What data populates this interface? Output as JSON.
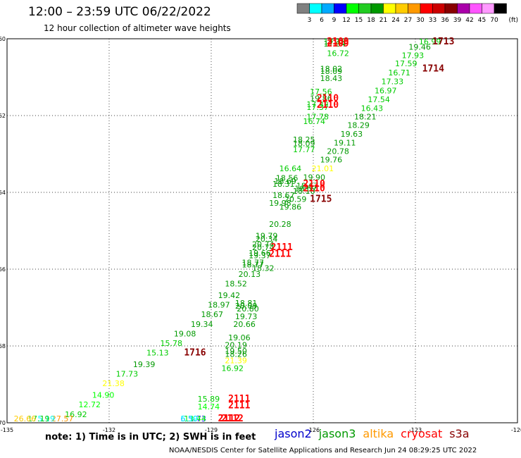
{
  "title": "12:00 – 23:59 UTC 06/22/2022",
  "subtitle": "12 hour collection of altimeter wave heights",
  "legend": {
    "unit": "(ft)",
    "ticks": [
      "3",
      "6",
      "9",
      "12",
      "15",
      "18",
      "21",
      "24",
      "27",
      "30",
      "33",
      "36",
      "39",
      "42",
      "45",
      "70"
    ],
    "colors": [
      "#808080",
      "#00ffff",
      "#00aaff",
      "#0000ff",
      "#00ff00",
      "#22cc22",
      "#009900",
      "#ffff00",
      "#ffcc00",
      "#ff9900",
      "#ff0000",
      "#cc0000",
      "#880000",
      "#aa00aa",
      "#ff55ff",
      "#ff99ff",
      "#000000"
    ]
  },
  "chart_data": {
    "type": "scatter",
    "x_ticks": [
      "-135",
      "-132",
      "-129",
      "-126",
      "-123",
      "-120"
    ],
    "y_ticks": [
      "-60",
      "-62",
      "-64",
      "-66",
      "-68",
      "-70"
    ],
    "xlim": [
      -135,
      -120
    ],
    "ylim": [
      -70,
      -60
    ],
    "grid": true,
    "points": [
      {
        "lon": -125.7,
        "lat": -60.1,
        "label": "17.16",
        "color": "#00cc00"
      },
      {
        "lon": -125.7,
        "lat": -60.2,
        "label": "17.04",
        "color": "#009900"
      },
      {
        "lon": -125.6,
        "lat": -60.45,
        "label": "16.72",
        "color": "#00cc00"
      },
      {
        "lon": -125.8,
        "lat": -60.85,
        "label": "18.02",
        "color": "#009900"
      },
      {
        "lon": -125.8,
        "lat": -60.92,
        "label": "18.09",
        "color": "#009900"
      },
      {
        "lon": -125.8,
        "lat": -61.1,
        "label": "18.43",
        "color": "#009900"
      },
      {
        "lon": -126.1,
        "lat": -61.45,
        "label": "17.56",
        "color": "#00cc00"
      },
      {
        "lon": -126.1,
        "lat": -61.62,
        "label": "19.86",
        "color": "#009900"
      },
      {
        "lon": -126.2,
        "lat": -61.78,
        "label": "17.42",
        "color": "#00cc00"
      },
      {
        "lon": -126.2,
        "lat": -61.85,
        "label": "17.37",
        "color": "#00cc00"
      },
      {
        "lon": -126.2,
        "lat": -62.1,
        "label": "17.78",
        "color": "#00cc00"
      },
      {
        "lon": -126.3,
        "lat": -62.22,
        "label": "16.74",
        "color": "#00cc00"
      },
      {
        "lon": -126.6,
        "lat": -62.7,
        "label": "18.25",
        "color": "#009900"
      },
      {
        "lon": -126.6,
        "lat": -62.8,
        "label": "18.09",
        "color": "#009900"
      },
      {
        "lon": -126.6,
        "lat": -62.95,
        "label": "17.77",
        "color": "#00cc00"
      },
      {
        "lon": -127.0,
        "lat": -63.45,
        "label": "16.64",
        "color": "#00cc00"
      },
      {
        "lon": -127.1,
        "lat": -63.7,
        "label": "18.56",
        "color": "#009900"
      },
      {
        "lon": -127.15,
        "lat": -63.78,
        "label": "18.69",
        "color": "#009900"
      },
      {
        "lon": -127.2,
        "lat": -63.85,
        "label": "18.31",
        "color": "#009900"
      },
      {
        "lon": -127.2,
        "lat": -64.15,
        "label": "18.67",
        "color": "#009900"
      },
      {
        "lon": -127.3,
        "lat": -64.35,
        "label": "19.98",
        "color": "#009900"
      },
      {
        "lon": -127.3,
        "lat": -64.9,
        "label": "20.28",
        "color": "#009900"
      },
      {
        "lon": -127.7,
        "lat": -65.2,
        "label": "19.79",
        "color": "#009900"
      },
      {
        "lon": -127.7,
        "lat": -65.28,
        "label": "20.34",
        "color": "#009900"
      },
      {
        "lon": -127.8,
        "lat": -65.42,
        "label": "20.74",
        "color": "#009900"
      },
      {
        "lon": -127.8,
        "lat": -65.5,
        "label": "20.74",
        "color": "#009900"
      },
      {
        "lon": -127.9,
        "lat": -65.65,
        "label": "19.66",
        "color": "#009900"
      },
      {
        "lon": -127.9,
        "lat": -65.72,
        "label": "19.37",
        "color": "#009900"
      },
      {
        "lon": -128.1,
        "lat": -65.9,
        "label": "18.77",
        "color": "#009900"
      },
      {
        "lon": -128.1,
        "lat": -65.95,
        "label": "18.77",
        "color": "#009900"
      },
      {
        "lon": -127.8,
        "lat": -66.05,
        "label": "18.32",
        "color": "#009900"
      },
      {
        "lon": -128.2,
        "lat": -66.2,
        "label": "20.13",
        "color": "#009900"
      },
      {
        "lon": -128.6,
        "lat": -66.45,
        "label": "18.52",
        "color": "#009900"
      },
      {
        "lon": -128.8,
        "lat": -66.75,
        "label": "19.42",
        "color": "#009900"
      },
      {
        "lon": -129.1,
        "lat": -67.0,
        "label": "18.97",
        "color": "#009900"
      },
      {
        "lon": -129.3,
        "lat": -67.25,
        "label": "18.67",
        "color": "#009900"
      },
      {
        "lon": -129.6,
        "lat": -67.5,
        "label": "19.34",
        "color": "#009900"
      },
      {
        "lon": -130.1,
        "lat": -67.75,
        "label": "19.08",
        "color": "#009900"
      },
      {
        "lon": -130.5,
        "lat": -68.0,
        "label": "15.78",
        "color": "#00cc00"
      },
      {
        "lon": -130.9,
        "lat": -68.25,
        "label": "15.13",
        "color": "#00cc00"
      },
      {
        "lon": -131.3,
        "lat": -68.55,
        "label": "19.39",
        "color": "#009900"
      },
      {
        "lon": -131.8,
        "lat": -68.8,
        "label": "17.73",
        "color": "#00cc00"
      },
      {
        "lon": -132.2,
        "lat": -69.05,
        "label": "21.38",
        "color": "#ffff00"
      },
      {
        "lon": -132.5,
        "lat": -69.35,
        "label": "14.90",
        "color": "#00ff00"
      },
      {
        "lon": -132.9,
        "lat": -69.6,
        "label": "12.72",
        "color": "#00ff00"
      },
      {
        "lon": -133.3,
        "lat": -69.85,
        "label": "16.92",
        "color": "#00cc00"
      },
      {
        "lon": -133.7,
        "lat": -70.15,
        "label": "27.57",
        "color": "#ff9900"
      },
      {
        "lon": -134.1,
        "lat": -70.45,
        "label": "5.19",
        "color": "#00ffff"
      },
      {
        "lon": -134.4,
        "lat": -70.7,
        "label": "17.19",
        "color": "#00cc00"
      },
      {
        "lon": -134.8,
        "lat": -71.0,
        "label": "26.66",
        "color": "#ffcc00"
      },
      {
        "lon": -122.9,
        "lat": -60.05,
        "label": "16.99",
        "color": "#00cc00"
      },
      {
        "lon": -123.2,
        "lat": -60.28,
        "label": "19.46",
        "color": "#009900"
      },
      {
        "lon": -123.4,
        "lat": -60.5,
        "label": "17.93",
        "color": "#00cc00"
      },
      {
        "lon": -123.6,
        "lat": -60.72,
        "label": "17.59",
        "color": "#00cc00"
      },
      {
        "lon": -123.8,
        "lat": -60.95,
        "label": "16.71",
        "color": "#00cc00"
      },
      {
        "lon": -124.0,
        "lat": -61.18,
        "label": "17.33",
        "color": "#00cc00"
      },
      {
        "lon": -124.2,
        "lat": -61.42,
        "label": "16.97",
        "color": "#00cc00"
      },
      {
        "lon": -124.4,
        "lat": -61.65,
        "label": "17.54",
        "color": "#00cc00"
      },
      {
        "lon": -124.6,
        "lat": -61.88,
        "label": "16.43",
        "color": "#00cc00"
      },
      {
        "lon": -124.8,
        "lat": -62.1,
        "label": "18.21",
        "color": "#009900"
      },
      {
        "lon": -125.0,
        "lat": -62.32,
        "label": "18.29",
        "color": "#009900"
      },
      {
        "lon": -125.2,
        "lat": -62.55,
        "label": "19.63",
        "color": "#009900"
      },
      {
        "lon": -125.4,
        "lat": -62.78,
        "label": "19.11",
        "color": "#009900"
      },
      {
        "lon": -125.6,
        "lat": -63.0,
        "label": "20.78",
        "color": "#009900"
      },
      {
        "lon": -125.8,
        "lat": -63.22,
        "label": "19.76",
        "color": "#009900"
      },
      {
        "lon": -126.05,
        "lat": -63.45,
        "label": "21.01",
        "color": "#ffff00"
      },
      {
        "lon": -126.3,
        "lat": -63.68,
        "label": "19.90",
        "color": "#009900"
      },
      {
        "lon": -126.5,
        "lat": -63.9,
        "label": "18.67",
        "color": "#009900"
      },
      {
        "lon": -126.55,
        "lat": -63.97,
        "label": "18.57",
        "color": "#009900"
      },
      {
        "lon": -126.6,
        "lat": -64.04,
        "label": "18.10",
        "color": "#009900"
      },
      {
        "lon": -126.85,
        "lat": -64.25,
        "label": "20.59",
        "color": "#009900"
      },
      {
        "lon": -127.0,
        "lat": -64.45,
        "label": "19.86",
        "color": "#009900"
      },
      {
        "lon": -128.3,
        "lat": -66.95,
        "label": "18.81",
        "color": "#009900"
      },
      {
        "lon": -128.3,
        "lat": -67.03,
        "label": "20.09",
        "color": "#009900"
      },
      {
        "lon": -128.25,
        "lat": -67.1,
        "label": "20.80",
        "color": "#009900"
      },
      {
        "lon": -128.3,
        "lat": -67.3,
        "label": "19.73",
        "color": "#009900"
      },
      {
        "lon": -128.35,
        "lat": -67.5,
        "label": "20.66",
        "color": "#009900"
      },
      {
        "lon": -128.5,
        "lat": -67.85,
        "label": "19.06",
        "color": "#009900"
      },
      {
        "lon": -128.6,
        "lat": -68.05,
        "label": "20.19",
        "color": "#009900"
      },
      {
        "lon": -128.6,
        "lat": -68.2,
        "label": "19.50",
        "color": "#009900"
      },
      {
        "lon": -128.6,
        "lat": -68.28,
        "label": "18.26",
        "color": "#009900"
      },
      {
        "lon": -128.6,
        "lat": -68.45,
        "label": "21.39",
        "color": "#ffff00"
      },
      {
        "lon": -128.7,
        "lat": -68.65,
        "label": "16.92",
        "color": "#00cc00"
      },
      {
        "lon": -129.4,
        "lat": -69.45,
        "label": "15.89",
        "color": "#00cc00"
      },
      {
        "lon": -129.4,
        "lat": -69.65,
        "label": "14.74",
        "color": "#00ff00"
      },
      {
        "lon": -129.8,
        "lat": -70.3,
        "label": "11.73",
        "color": "#0000ff"
      },
      {
        "lon": -129.8,
        "lat": -70.5,
        "label": "13.44",
        "color": "#00ff00"
      },
      {
        "lon": -129.9,
        "lat": -71.0,
        "label": "6.50",
        "color": "#00aaff"
      },
      {
        "lon": -129.9,
        "lat": -71.2,
        "label": "5.39",
        "color": "#00ffff"
      }
    ],
    "time_labels": [
      {
        "lon": -125.6,
        "lat": -60.12,
        "label": "2109",
        "color": "#ff0000"
      },
      {
        "lon": -125.6,
        "lat": -60.2,
        "label": "2109",
        "color": "#ff0000"
      },
      {
        "lon": -122.5,
        "lat": -60.05,
        "label": "1713",
        "color": "#880000"
      },
      {
        "lon": -122.8,
        "lat": -60.85,
        "label": "1714",
        "color": "#880000"
      },
      {
        "lon": -125.9,
        "lat": -61.62,
        "label": "2110",
        "color": "#ff0000"
      },
      {
        "lon": -125.9,
        "lat": -61.8,
        "label": "2110",
        "color": "#ff0000"
      },
      {
        "lon": -126.3,
        "lat": -63.85,
        "label": "2110",
        "color": "#ff0000"
      },
      {
        "lon": -126.3,
        "lat": -63.97,
        "label": "2110",
        "color": "#ff0000"
      },
      {
        "lon": -126.1,
        "lat": -64.25,
        "label": "1715",
        "color": "#880000"
      },
      {
        "lon": -127.25,
        "lat": -65.5,
        "label": "2111",
        "color": "#ff0000"
      },
      {
        "lon": -127.3,
        "lat": -65.68,
        "label": "2111",
        "color": "#ff0000"
      },
      {
        "lon": -129.8,
        "lat": -68.25,
        "label": "1716",
        "color": "#880000"
      },
      {
        "lon": -128.5,
        "lat": -69.45,
        "label": "2111",
        "color": "#ff0000"
      },
      {
        "lon": -128.5,
        "lat": -69.62,
        "label": "2111",
        "color": "#ff0000"
      },
      {
        "lon": -128.7,
        "lat": -70.3,
        "label": "2112",
        "color": "#ff0000"
      },
      {
        "lon": -128.8,
        "lat": -70.5,
        "label": "2112",
        "color": "#ff0000"
      },
      {
        "lon": -128.8,
        "lat": -71.0,
        "label": "2112",
        "color": "#ff0000"
      }
    ]
  },
  "note": "note:  1) Time is in UTC;  2) SWH is in feet",
  "satellites": [
    {
      "name": "jason2",
      "color": "#0000cc"
    },
    {
      "name": "jason3",
      "color": "#009900"
    },
    {
      "name": "altika",
      "color": "#ff9900"
    },
    {
      "name": "cryosat",
      "color": "#ff0000"
    },
    {
      "name": "s3a",
      "color": "#880000"
    }
  ],
  "credit": "NOAA/NESDIS Center for Satellite Applications and Research    Jun 24 08:29:25 UTC 2022"
}
